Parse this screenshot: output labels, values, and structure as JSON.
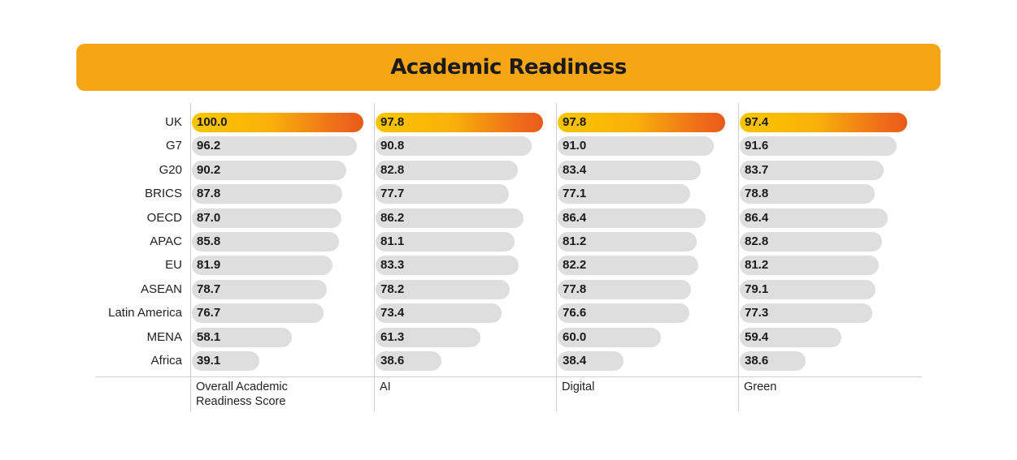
{
  "title": "Academic Readiness",
  "chart_data": {
    "type": "bar",
    "orientation": "horizontal",
    "title": "Academic Readiness",
    "categories": [
      "UK",
      "G7",
      "G20",
      "BRICS",
      "OECD",
      "APAC",
      "EU",
      "ASEAN",
      "Latin America",
      "MENA",
      "Africa"
    ],
    "highlight": "UK",
    "xlim": [
      0,
      100
    ],
    "series": [
      {
        "name": "Overall Academic Readiness Score",
        "line1": "Overall Academic",
        "line2": "Readiness Score",
        "values": [
          100.0,
          96.2,
          90.2,
          87.8,
          87.0,
          85.8,
          81.9,
          78.7,
          76.7,
          58.1,
          39.1
        ],
        "labels": [
          "100.0",
          "96.2",
          "90.2",
          "87.8",
          "87.0",
          "85.8",
          "81.9",
          "78.7",
          "76.7",
          "58.1",
          "39.1"
        ]
      },
      {
        "name": "AI",
        "line1": "AI",
        "line2": "",
        "values": [
          97.8,
          90.8,
          82.8,
          77.7,
          86.2,
          81.1,
          83.3,
          78.2,
          73.4,
          61.3,
          38.6
        ],
        "labels": [
          "97.8",
          "90.8",
          "82.8",
          "77.7",
          "86.2",
          "81.1",
          "83.3",
          "78.2",
          "73.4",
          "61.3",
          "38.6"
        ]
      },
      {
        "name": "Digital",
        "line1": "Digital",
        "line2": "",
        "values": [
          97.8,
          91.0,
          83.4,
          77.1,
          86.4,
          81.2,
          82.2,
          77.8,
          76.6,
          60.0,
          38.4
        ],
        "labels": [
          "97.8",
          "91.0",
          "83.4",
          "77.1",
          "86.4",
          "81.2",
          "82.2",
          "77.8",
          "76.6",
          "60.0",
          "38.4"
        ]
      },
      {
        "name": "Green",
        "line1": "Green",
        "line2": "",
        "values": [
          97.4,
          91.6,
          83.7,
          78.8,
          86.4,
          82.8,
          81.2,
          79.1,
          77.3,
          59.4,
          38.6
        ],
        "labels": [
          "97.4",
          "91.6",
          "83.7",
          "78.8",
          "86.4",
          "82.8",
          "81.2",
          "79.1",
          "77.3",
          "59.4",
          "38.6"
        ]
      }
    ]
  },
  "colors": {
    "banner": "#f6a514",
    "bar_default": "#dedede",
    "highlight_start": "#fbc500",
    "highlight_end": "#e85b19"
  }
}
